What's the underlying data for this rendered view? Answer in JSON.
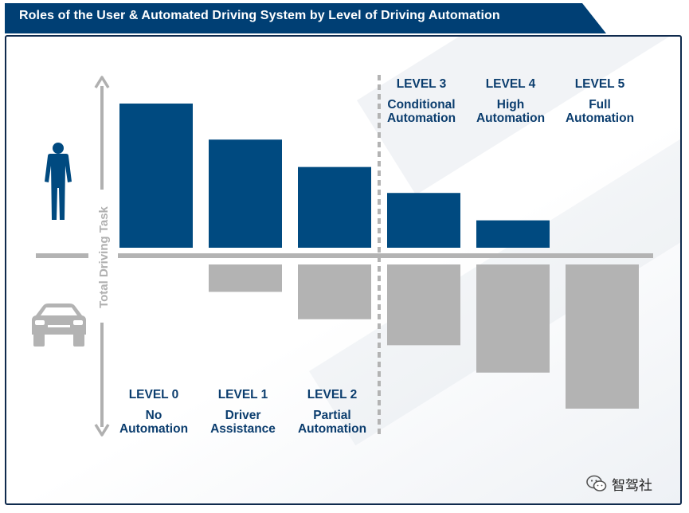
{
  "title": "Roles of the User & Automated Driving System by Level of Driving Automation",
  "axis_label": "Total Driving Task",
  "watermark": "智驾社",
  "colors": {
    "user": "#004a80",
    "system": "#b3b3b3",
    "title_bg": "#003f74",
    "text": "#0b3d6e"
  },
  "chart_data": {
    "type": "bar",
    "title": "Roles of the User & Automated Driving System by Level of Driving Automation",
    "ylabel": "Total Driving Task",
    "categories": [
      "LEVEL 0",
      "LEVEL 1",
      "LEVEL 2",
      "LEVEL 3",
      "LEVEL 4",
      "LEVEL 5"
    ],
    "descriptions": [
      [
        "No",
        "Automation"
      ],
      [
        "Driver",
        "Assistance"
      ],
      [
        "Partial",
        "Automation"
      ],
      [
        "Conditional",
        "Automation"
      ],
      [
        "High",
        "Automation"
      ],
      [
        "Full",
        "Automation"
      ]
    ],
    "series": [
      {
        "name": "User",
        "values": [
          100,
          75,
          56,
          38,
          19,
          0
        ]
      },
      {
        "name": "Automated Driving System",
        "values": [
          0,
          19,
          38,
          56,
          75,
          100
        ]
      }
    ],
    "ylim": [
      0,
      100
    ]
  }
}
